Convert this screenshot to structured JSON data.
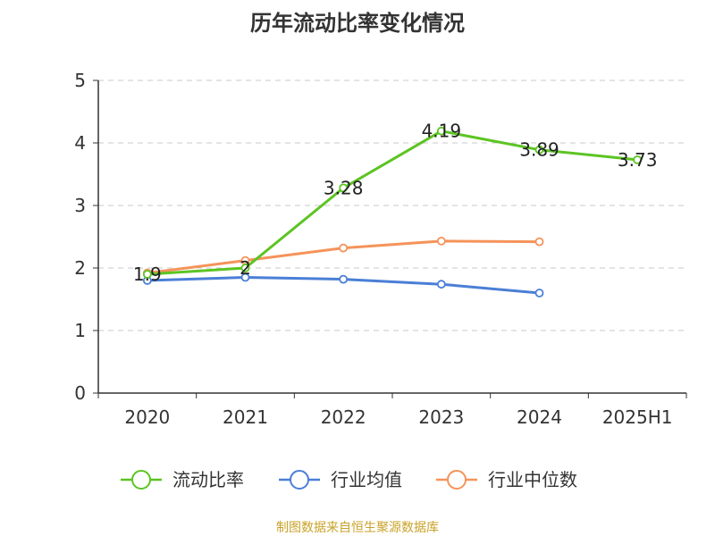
{
  "chart_data": {
    "type": "line",
    "title": "历年流动比率变化情况",
    "categories": [
      "2020",
      "2021",
      "2022",
      "2023",
      "2024",
      "2025H1"
    ],
    "ylim": [
      0,
      5
    ],
    "yticks": [
      "0",
      "1",
      "2",
      "3",
      "4",
      "5"
    ],
    "grid": true,
    "legend_position": "bottom",
    "series": [
      {
        "name": "流动比率",
        "color": "#5cc423",
        "values": [
          1.9,
          2,
          3.28,
          4.19,
          3.89,
          3.73
        ],
        "labels": [
          "1.9",
          "2",
          "3.28",
          "4.19",
          "3.89",
          "3.73"
        ]
      },
      {
        "name": "行业均值",
        "color": "#4a7fd6",
        "values": [
          1.8,
          1.85,
          1.82,
          1.74,
          1.6,
          null
        ]
      },
      {
        "name": "行业中位数",
        "color": "#f5935a",
        "values": [
          1.92,
          2.12,
          2.32,
          2.43,
          2.42,
          null
        ]
      }
    ],
    "source": "制图数据来自恒生聚源数据库"
  }
}
